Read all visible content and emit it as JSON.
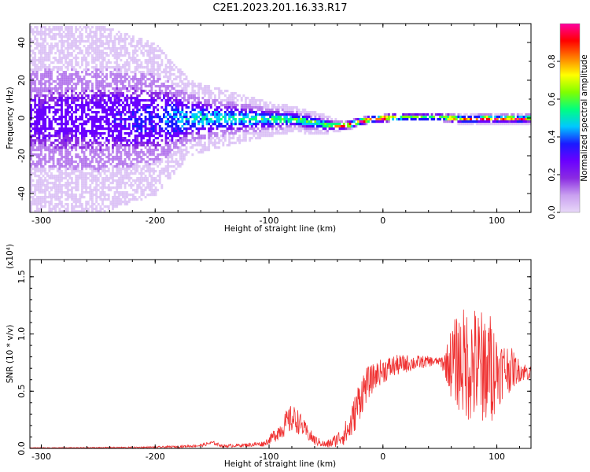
{
  "chart_data": [
    {
      "type": "heatmap",
      "title": "C2E1.2023.201.16.33.R17",
      "xlabel": "Height of straight line (km)",
      "ylabel": "Frequency (Hz)",
      "xlim": [
        -310,
        130
      ],
      "ylim": [
        -50,
        50
      ],
      "xticks": [
        "-300",
        "-200",
        "-100",
        "0",
        "100"
      ],
      "xtick_values": [
        -300,
        -200,
        -100,
        0,
        100
      ],
      "yticks": [
        "-40",
        "-20",
        "0",
        "20",
        "40"
      ],
      "ytick_values": [
        -40,
        -20,
        0,
        20,
        40
      ],
      "colorbar": {
        "label": "Normalized spectral amplitude",
        "range": [
          0,
          1
        ],
        "ticks": [
          "0.0",
          "0.2",
          "0.4",
          "0.6",
          "0.8"
        ],
        "tick_values": [
          0.0,
          0.2,
          0.4,
          0.6,
          0.8
        ],
        "colormap": [
          "#e8d8f8",
          "#c9a0f0",
          "#8a2be2",
          "#6a00ff",
          "#1a1aff",
          "#00c8ff",
          "#00ff80",
          "#80ff00",
          "#ffff00",
          "#ff8000",
          "#ff0000",
          "#ff00a0"
        ]
      },
      "ridge_profile": {
        "x": [
          -310,
          -250,
          -200,
          -170,
          -140,
          -100,
          -80,
          -60,
          -50,
          -40,
          -30,
          -20,
          -10,
          0,
          10,
          30,
          50,
          60,
          70,
          80,
          90,
          100,
          110,
          120,
          130
        ],
        "freq_center": [
          0,
          0,
          0,
          0.5,
          0.5,
          0,
          0,
          -2,
          -3,
          -3.5,
          -3,
          -1,
          0,
          0.5,
          1,
          1,
          1,
          0.5,
          0,
          0,
          0.5,
          0,
          0.5,
          0,
          0.5
        ],
        "band_halfwidth": [
          50,
          50,
          40,
          20,
          15,
          9,
          7,
          6,
          5,
          3,
          2.5,
          2,
          2,
          2,
          2,
          2,
          2,
          2.5,
          3,
          3,
          3,
          3,
          3,
          3,
          3
        ],
        "peak_amplitude": [
          0.15,
          0.18,
          0.25,
          0.4,
          0.4,
          0.45,
          0.5,
          0.5,
          0.55,
          0.85,
          0.95,
          0.9,
          0.8,
          0.95,
          0.6,
          0.55,
          0.55,
          0.85,
          0.7,
          0.85,
          0.9,
          0.8,
          0.9,
          0.85,
          0.7
        ]
      }
    },
    {
      "type": "line",
      "xlabel": "Height of straight line (km)",
      "ylabel": "SNR (10 * v/v)",
      "y_multiplier": "(x10⁴)",
      "xlim": [
        -310,
        130
      ],
      "ylim": [
        0,
        1.65
      ],
      "xticks": [
        "-300",
        "-200",
        "-100",
        "0",
        "100"
      ],
      "xtick_values": [
        -300,
        -200,
        -100,
        0,
        100
      ],
      "yticks": [
        "0.0",
        "0.5",
        "1.0",
        "1.5"
      ],
      "ytick_values": [
        0.0,
        0.5,
        1.0,
        1.5
      ],
      "color": "#ef3030",
      "series": [
        {
          "x": [
            -310,
            -280,
            -250,
            -220,
            -200,
            -180,
            -160,
            -150,
            -140,
            -120,
            -105,
            -100,
            -95,
            -90,
            -85,
            -80,
            -75,
            -70,
            -65,
            -60,
            -55,
            -50,
            -45,
            -40,
            -35,
            -30,
            -25,
            -20,
            -15,
            -10,
            -5,
            0,
            10,
            20,
            30,
            40,
            50,
            55,
            60,
            65,
            70,
            75,
            80,
            85,
            90,
            95,
            100,
            105,
            110,
            115,
            120,
            125,
            130
          ],
          "y": [
            0.005,
            0.005,
            0.006,
            0.008,
            0.01,
            0.015,
            0.025,
            0.05,
            0.02,
            0.03,
            0.04,
            0.07,
            0.12,
            0.16,
            0.22,
            0.26,
            0.24,
            0.18,
            0.12,
            0.07,
            0.05,
            0.03,
            0.05,
            0.08,
            0.12,
            0.16,
            0.3,
            0.45,
            0.55,
            0.6,
            0.65,
            0.68,
            0.72,
            0.74,
            0.75,
            0.76,
            0.76,
            0.74,
            0.75,
            0.76,
            0.75,
            0.74,
            0.72,
            0.72,
            0.72,
            0.7,
            0.68,
            0.69,
            0.7,
            0.69,
            0.68,
            0.67,
            0.66
          ],
          "noise": [
            0.002,
            0.002,
            0.003,
            0.004,
            0.005,
            0.006,
            0.008,
            0.01,
            0.008,
            0.01,
            0.015,
            0.02,
            0.04,
            0.05,
            0.07,
            0.08,
            0.07,
            0.05,
            0.04,
            0.03,
            0.02,
            0.02,
            0.03,
            0.04,
            0.06,
            0.08,
            0.1,
            0.12,
            0.1,
            0.08,
            0.07,
            0.07,
            0.06,
            0.05,
            0.04,
            0.03,
            0.02,
            0.08,
            0.2,
            0.26,
            0.3,
            0.32,
            0.34,
            0.3,
            0.32,
            0.3,
            0.22,
            0.16,
            0.14,
            0.1,
            0.06,
            0.05,
            0.04
          ]
        }
      ]
    }
  ]
}
